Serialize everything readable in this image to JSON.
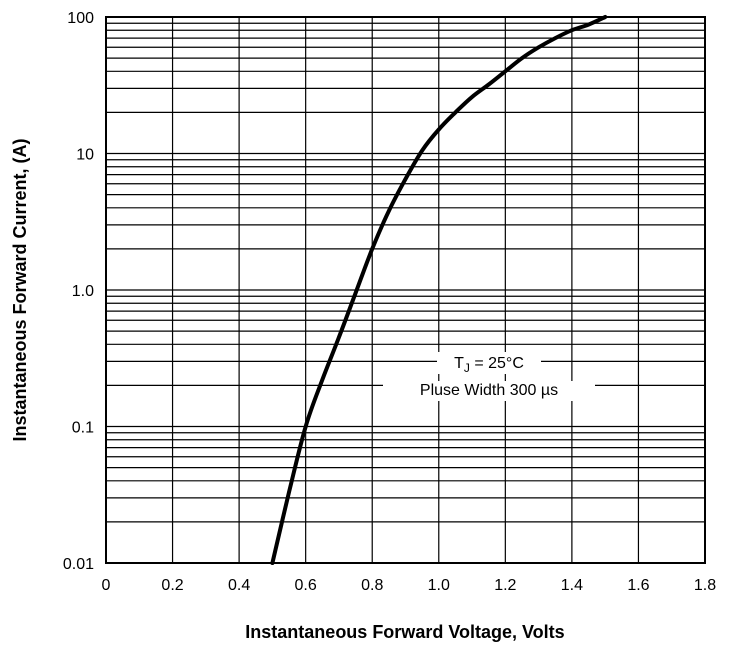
{
  "chart_data": {
    "type": "line",
    "title": "",
    "xlabel": "Instantaneous Forward Voltage, Volts",
    "ylabel": "Instantaneous Forward Current, (A)",
    "xlim": [
      0,
      1.8
    ],
    "ylim": [
      0.01,
      100
    ],
    "yscale": "log",
    "grid": true,
    "x_ticks": [
      0,
      0.2,
      0.4,
      0.6,
      0.8,
      1.0,
      1.2,
      1.4,
      1.6,
      1.8
    ],
    "x_tick_labels": [
      "0",
      "0.2",
      "0.4",
      "0.6",
      "0.8",
      "1.0",
      "1.2",
      "1.4",
      "1.6",
      "1.8"
    ],
    "y_ticks": [
      0.01,
      0.1,
      1,
      10,
      100
    ],
    "y_tick_labels": [
      "0.01",
      "0.1",
      "1.0",
      "10",
      "100"
    ],
    "series": [
      {
        "x": [
          0.5,
          0.55,
          0.6,
          0.65,
          0.7,
          0.75,
          0.8,
          0.85,
          0.9,
          0.95,
          1.0,
          1.05,
          1.1,
          1.15,
          1.2,
          1.25,
          1.3,
          1.35,
          1.4,
          1.45,
          1.5
        ],
        "y": [
          0.01,
          0.033,
          0.1,
          0.22,
          0.45,
          0.95,
          2.0,
          3.8,
          6.5,
          10.5,
          15,
          20,
          26,
          32,
          40,
          50,
          60,
          70,
          80,
          88,
          100
        ]
      }
    ],
    "annotation": {
      "line1_prefix": "T",
      "line1_sub": "J",
      "line1_suffix": " = 25°C",
      "line2": "Pluse Width 300 µs"
    }
  }
}
